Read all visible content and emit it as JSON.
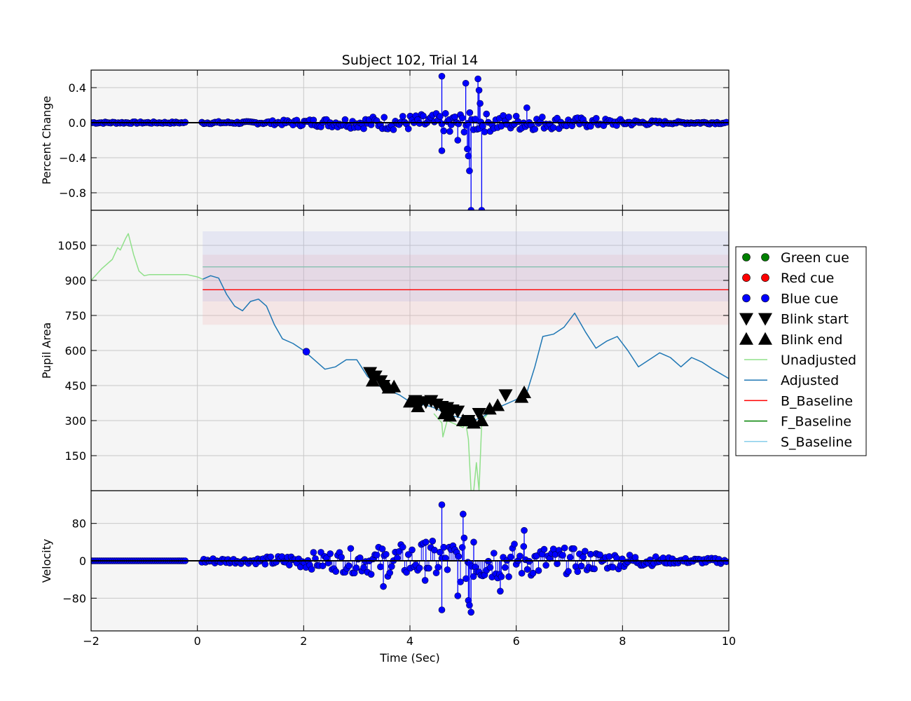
{
  "chart_data": {
    "type": "line",
    "title": "Subject 102, Trial 14",
    "xlabel": "Time (Sec)",
    "xlim": [
      -2,
      10
    ],
    "xticks": [
      -2,
      0,
      2,
      4,
      6,
      8,
      10
    ],
    "xtick_labels": [
      "−2",
      "0",
      "2",
      "4",
      "6",
      "8",
      "10"
    ],
    "grid": true,
    "legend_position": "center-right, outside axes",
    "colors": {
      "background": "#f5f5f5",
      "grid": "#c8c8c8",
      "blue_cue": "#0000ff",
      "green_cue": "#008000",
      "red_cue": "#ff0000",
      "unadjusted": "#90e08a",
      "adjusted": "#1f77b4",
      "b_baseline": "#ff0000",
      "f_baseline": "#008000",
      "s_baseline": "#87ceeb"
    },
    "legend": [
      {
        "label": "Green cue",
        "marker": "circle",
        "color": "#008000"
      },
      {
        "label": "Red cue",
        "marker": "circle",
        "color": "#ff0000"
      },
      {
        "label": "Blue cue",
        "marker": "circle",
        "color": "#0000ff"
      },
      {
        "label": "Blink start",
        "marker": "triangle-down",
        "color": "#000000"
      },
      {
        "label": "Blink end",
        "marker": "triangle-up",
        "color": "#000000"
      },
      {
        "label": "Unadjusted",
        "marker": "line",
        "color": "#90e08a"
      },
      {
        "label": "Adjusted",
        "marker": "line",
        "color": "#1f77b4"
      },
      {
        "label": "B_Baseline",
        "marker": "line",
        "color": "#ff0000"
      },
      {
        "label": "F_Baseline",
        "marker": "line",
        "color": "#008000"
      },
      {
        "label": "S_Baseline",
        "marker": "line",
        "color": "#87ceeb"
      }
    ],
    "panels": [
      {
        "id": "percent-change",
        "ylabel": "Percent Change",
        "ylim": [
          -1.0,
          0.6
        ],
        "yticks": [
          0.4,
          0.0,
          -0.4,
          -0.8
        ],
        "ytick_labels": [
          "0.4",
          "0.0",
          "−0.4",
          "−0.8"
        ],
        "series": [
          {
            "name": "Blue cue",
            "kind": "stem",
            "color": "#0000ff",
            "x": [
              4.6,
              4.6,
              5.05,
              5.08,
              5.1,
              5.12,
              5.15,
              5.28,
              5.3,
              5.32,
              5.35,
              6.2,
              4.75,
              4.9
            ],
            "y": [
              0.53,
              -0.32,
              0.45,
              -0.3,
              -0.38,
              -0.55,
              -1.0,
              0.5,
              0.37,
              0.22,
              -1.0,
              0.17,
              -0.1,
              -0.2
            ]
          }
        ]
      },
      {
        "id": "pupil-area",
        "ylabel": "Pupil Area",
        "ylim": [
          0,
          1200
        ],
        "yticks": [
          1050,
          900,
          750,
          600,
          450,
          300,
          150
        ],
        "ytick_labels": [
          "1050",
          "900",
          "750",
          "600",
          "450",
          "300",
          "150"
        ],
        "bands": [
          {
            "name": "B_Baseline band",
            "x": [
              0.1,
              10
            ],
            "y": [
              710,
              1010
            ],
            "color": "#f4a0a0"
          },
          {
            "name": "S_Baseline band",
            "x": [
              0.1,
              10
            ],
            "y": [
              810,
              1110
            ],
            "color": "#a0a8e8"
          }
        ],
        "hlines": [
          {
            "name": "B_Baseline",
            "y": 860,
            "x": [
              0.1,
              10
            ],
            "color": "#ff0000"
          },
          {
            "name": "S_Baseline",
            "y": 958,
            "x": [
              0.1,
              10
            ],
            "color": "#87c0b0"
          }
        ],
        "series": [
          {
            "name": "Unadjusted",
            "color": "#90e08a",
            "x": [
              -2,
              -1.8,
              -1.6,
              -1.5,
              -1.45,
              -1.35,
              -1.3,
              -1.2,
              -1.1,
              -1.0,
              -0.9,
              -0.5,
              -0.2,
              0.0,
              0.1
            ],
            "y": [
              900,
              950,
              990,
              1040,
              1030,
              1080,
              1100,
              1010,
              940,
              920,
              925,
              925,
              925,
              915,
              905
            ]
          },
          {
            "name": "Unadjusted",
            "color": "#90e08a",
            "x": [
              4.45,
              4.6,
              4.62,
              4.7,
              4.9,
              5.0,
              5.05,
              5.1,
              5.15,
              5.2,
              5.25,
              5.3,
              5.35,
              5.4,
              5.5
            ],
            "y": [
              330,
              290,
              230,
              300,
              280,
              270,
              290,
              220,
              0,
              0,
              120,
              0,
              290,
              310,
              340
            ]
          },
          {
            "name": "Adjusted",
            "color": "#1f77b4",
            "x": [
              0.1,
              0.25,
              0.4,
              0.55,
              0.7,
              0.85,
              1.0,
              1.15,
              1.3,
              1.45,
              1.6,
              1.8,
              2.0,
              2.2,
              2.4,
              2.6,
              2.8,
              3.0,
              3.2,
              3.4,
              3.6,
              3.8,
              4.0,
              4.2,
              4.4,
              4.6,
              4.8,
              5.0,
              5.2,
              5.4,
              5.6,
              5.8,
              6.0,
              6.2,
              6.35,
              6.5,
              6.7,
              6.9,
              7.1,
              7.3,
              7.5,
              7.7,
              7.9,
              8.1,
              8.3,
              8.5,
              8.7,
              8.9,
              9.1,
              9.3,
              9.5,
              9.7,
              9.85,
              10.0
            ],
            "y": [
              905,
              920,
              910,
              840,
              790,
              770,
              810,
              820,
              790,
              710,
              650,
              630,
              600,
              560,
              520,
              530,
              560,
              560,
              490,
              450,
              430,
              410,
              380,
              370,
              360,
              340,
              320,
              310,
              300,
              320,
              350,
              370,
              390,
              420,
              530,
              660,
              670,
              700,
              760,
              680,
              610,
              640,
              660,
              600,
              530,
              560,
              590,
              570,
              530,
              570,
              550,
              520,
              500,
              480
            ]
          },
          {
            "name": "Blue cue",
            "kind": "marker",
            "color": "#0000ff",
            "x": [
              2.05
            ],
            "y": [
              595
            ]
          },
          {
            "name": "Blink start",
            "kind": "marker-down",
            "color": "#000000",
            "x": [
              3.25,
              3.35,
              3.45,
              3.5,
              4.1,
              4.2,
              4.3,
              4.4,
              4.5,
              4.6,
              4.7,
              4.8,
              4.9,
              5.1,
              5.3,
              5.8
            ],
            "y": [
              505,
              490,
              470,
              450,
              385,
              380,
              380,
              385,
              370,
              360,
              355,
              345,
              340,
              300,
              330,
              410
            ]
          },
          {
            "name": "Blink end",
            "kind": "marker-up",
            "color": "#000000",
            "x": [
              3.3,
              3.6,
              3.7,
              4.0,
              4.15,
              4.65,
              4.75,
              5.0,
              5.2,
              5.35,
              5.5,
              5.65,
              6.1,
              6.15
            ],
            "y": [
              470,
              440,
              445,
              380,
              360,
              330,
              320,
              300,
              290,
              300,
              350,
              365,
              400,
              420
            ]
          }
        ]
      },
      {
        "id": "velocity",
        "ylabel": "Velocity",
        "ylim": [
          -150,
          150
        ],
        "yticks": [
          80,
          0,
          -80
        ],
        "ytick_labels": [
          "80",
          "0",
          "−80"
        ],
        "series": [
          {
            "name": "Blue cue",
            "kind": "stem",
            "color": "#0000ff",
            "x": [
              4.6,
              4.6,
              5.0,
              5.1,
              5.12,
              5.15,
              5.2,
              6.15,
              5.7,
              4.9,
              4.3,
              3.5
            ],
            "y": [
              120,
              -105,
              100,
              -85,
              -95,
              -110,
              40,
              65,
              -65,
              -75,
              40,
              -55
            ]
          }
        ]
      }
    ]
  }
}
